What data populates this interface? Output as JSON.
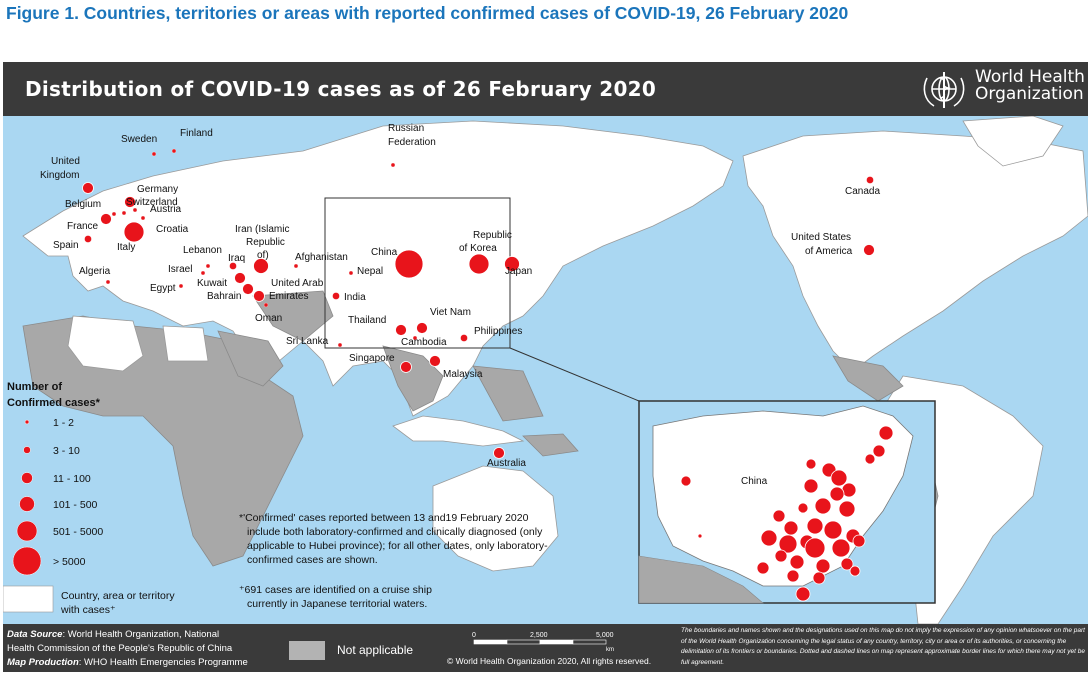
{
  "figure_title": "Figure 1. Countries, territories or areas with reported confirmed cases of COVID-19, 26 February 2020",
  "map": {
    "title": "Distribution of COVID-19 cases as of 26 February 2020",
    "organization": {
      "line1": "World Health",
      "line2": "Organization",
      "emblem_icon": "who-emblem-icon"
    },
    "colors": {
      "ocean": "#aad7f2",
      "land": "#ffffff",
      "not_applicable": "#b3b3b3",
      "case_marker": "#e8141b",
      "header": "#3a3a3a"
    }
  },
  "legend": {
    "title_line1": "Number of",
    "title_line2": "Confirmed cases*",
    "classes": [
      "1 - 2",
      "3 - 10",
      "11 - 100",
      "101 - 500",
      "501 - 5000",
      "> 5000"
    ],
    "area_line1": "Country, area or territory",
    "area_line2": "with cases⁺"
  },
  "notes": {
    "confirmed_l1": "*'Confirmed' cases reported between 13 and19 February 2020",
    "confirmed_l2": "include both laboratory-confirmed and clinically diagnosed (only",
    "confirmed_l3": "applicable to Hubei province); for all other dates, only laboratory-",
    "confirmed_l4": "confirmed cases are shown.",
    "cruise_l1": "⁺691 cases are identified on a cruise ship",
    "cruise_l2": "currently in Japanese territorial waters."
  },
  "places": [
    {
      "name": "Finland",
      "cls": 1
    },
    {
      "name": "Sweden",
      "cls": 1
    },
    {
      "name": "Russian Federation",
      "cls": 1
    },
    {
      "name": "United Kingdom",
      "cls": 3
    },
    {
      "name": "Germany",
      "cls": 3
    },
    {
      "name": "Belgium",
      "cls": 1
    },
    {
      "name": "Switzerland",
      "cls": 1
    },
    {
      "name": "Austria",
      "cls": 1
    },
    {
      "name": "France",
      "cls": 3
    },
    {
      "name": "Croatia",
      "cls": 1
    },
    {
      "name": "Spain",
      "cls": 2
    },
    {
      "name": "Italy",
      "cls": 5
    },
    {
      "name": "Iran (Islamic Republic of)",
      "cls": 4
    },
    {
      "name": "Lebanon",
      "cls": 1
    },
    {
      "name": "Iraq",
      "cls": 2
    },
    {
      "name": "Israel",
      "cls": 1
    },
    {
      "name": "Afghanistan",
      "cls": 1
    },
    {
      "name": "Kuwait",
      "cls": 3
    },
    {
      "name": "Bahrain",
      "cls": 3
    },
    {
      "name": "United Arab Emirates",
      "cls": 3
    },
    {
      "name": "Oman",
      "cls": 1
    },
    {
      "name": "Algeria",
      "cls": 1
    },
    {
      "name": "Egypt",
      "cls": 1
    },
    {
      "name": "Nepal",
      "cls": 1
    },
    {
      "name": "India",
      "cls": 2
    },
    {
      "name": "Sri Lanka",
      "cls": 1
    },
    {
      "name": "China",
      "cls": 6
    },
    {
      "name": "Republic of Korea",
      "cls": 5
    },
    {
      "name": "Japan",
      "cls": 4
    },
    {
      "name": "Thailand",
      "cls": 3
    },
    {
      "name": "Viet Nam",
      "cls": 3
    },
    {
      "name": "Cambodia",
      "cls": 1
    },
    {
      "name": "Philippines",
      "cls": 2
    },
    {
      "name": "Singapore",
      "cls": 3
    },
    {
      "name": "Malaysia",
      "cls": 3
    },
    {
      "name": "Australia",
      "cls": 3
    },
    {
      "name": "Canada",
      "cls": 2
    },
    {
      "name": "United States of America",
      "cls": 3
    }
  ],
  "inset": {
    "label": "China"
  },
  "footer": {
    "source_label": "Data Source",
    "source_text": ": World Health Organization, National",
    "source_text2": "Health Commission of the People's Republic of China",
    "production_label": "Map Production",
    "production_text": ": WHO Health Emergencies Programme",
    "not_applicable": "Not applicable",
    "scale": {
      "t0": "0",
      "t1": "2,500",
      "t2": "5,000",
      "unit": "km"
    },
    "copyright": "© World Health Organization  2020,  All rights reserved.",
    "disclaimer": "The boundaries and names shown and the designations used on this map do not imply the expression of any opinion whatsoever on the part of the World Health Organization concerning the legal status of any country, territory, city or area or of its authorities, or concerning the delimitation of its frontiers or boundaries. Dotted and dashed lines on map represent approximate border lines for which there may not yet be full agreement."
  }
}
